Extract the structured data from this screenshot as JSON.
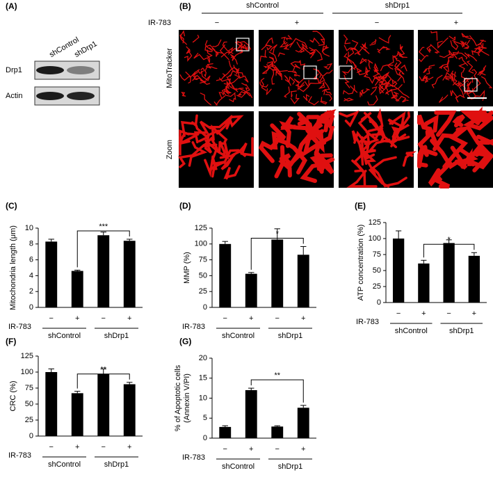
{
  "blot": {
    "panel_label": "(A)",
    "lanes": [
      "shControl",
      "shDrp1"
    ],
    "rows": [
      "Drp1",
      "Actin"
    ]
  },
  "microscopy": {
    "panel_label": "(B)",
    "groups": [
      "shControl",
      "shDrp1"
    ],
    "treatment_label": "IR-783",
    "treatments": [
      "−",
      "+",
      "−",
      "+"
    ],
    "rows": [
      "MitoTracker",
      "Zoom"
    ]
  },
  "chart_data": [
    {
      "type": "bar",
      "panel_label": "(C)",
      "y_label": "Mitochondria length (μm)",
      "categories": [
        "−",
        "+",
        "−",
        "+"
      ],
      "row_label": "IR-783",
      "groups": [
        "shControl",
        "shDrp1"
      ],
      "values": [
        8.3,
        4.6,
        9.1,
        8.4
      ],
      "errors": [
        0.3,
        0.1,
        0.4,
        0.2
      ],
      "color": "#000000",
      "ylim": [
        0,
        10
      ],
      "yticks": [
        0,
        2,
        4,
        6,
        8,
        10
      ],
      "significance": "***"
    },
    {
      "type": "bar",
      "panel_label": "(D)",
      "y_label": "MMP (%)",
      "categories": [
        "−",
        "+",
        "−",
        "+"
      ],
      "row_label": "IR-783",
      "groups": [
        "shControl",
        "shDrp1"
      ],
      "values": [
        100,
        53,
        107,
        83
      ],
      "errors": [
        4,
        2,
        17,
        13
      ],
      "color": "#000000",
      "ylim": [
        0,
        125
      ],
      "yticks": [
        0,
        25,
        50,
        75,
        100,
        125
      ],
      "significance": "*"
    },
    {
      "type": "bar",
      "panel_label": "(E)",
      "y_label": "ATP concentration (%)",
      "categories": [
        "−",
        "+",
        "−",
        "+"
      ],
      "row_label": "IR-783",
      "groups": [
        "shControl",
        "shDrp1"
      ],
      "values": [
        100,
        61,
        93,
        73
      ],
      "errors": [
        12,
        5,
        5,
        5
      ],
      "color": "#000000",
      "ylim": [
        0,
        125
      ],
      "yticks": [
        0,
        25,
        50,
        75,
        100,
        125
      ],
      "significance": "*"
    },
    {
      "type": "bar",
      "panel_label": "(F)",
      "y_label": "CRC (%)",
      "categories": [
        "−",
        "+",
        "−",
        "+"
      ],
      "row_label": "IR-783",
      "groups": [
        "shControl",
        "shDrp1"
      ],
      "values": [
        100,
        67,
        97,
        81
      ],
      "errors": [
        5,
        3,
        8,
        3
      ],
      "color": "#000000",
      "ylim": [
        0,
        125
      ],
      "yticks": [
        0,
        25,
        50,
        75,
        100,
        125
      ],
      "significance": "**"
    },
    {
      "type": "bar",
      "panel_label": "(G)",
      "y_label": [
        "% of Apoptotic cells",
        "(Annexin V/PI)"
      ],
      "categories": [
        "−",
        "+",
        "−",
        "+"
      ],
      "row_label": "IR-783",
      "groups": [
        "shControl",
        "shDrp1"
      ],
      "values": [
        2.8,
        12,
        2.9,
        7.6
      ],
      "errors": [
        0.3,
        0.5,
        0.2,
        0.6
      ],
      "color": "#000000",
      "ylim": [
        0,
        20
      ],
      "yticks": [
        0,
        5,
        10,
        15,
        20
      ],
      "significance": "**"
    }
  ]
}
